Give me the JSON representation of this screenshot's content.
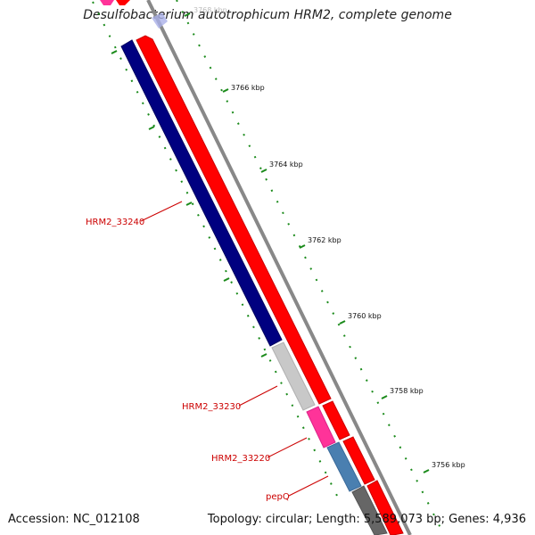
{
  "title": "Desulfobacterium autotrophicum HRM2, complete genome",
  "accession": "Accession: NC_012108",
  "summary": "Topology: circular; Length: 5,589,073 bp; Genes: 4,936",
  "ticks": [
    {
      "label": "3768 kbp",
      "faded": true
    },
    {
      "label": "3766 kbp"
    },
    {
      "label": "3764 kbp"
    },
    {
      "label": "3762 kbp"
    },
    {
      "label": "3760 kbp"
    },
    {
      "label": "3758 kbp"
    },
    {
      "label": "3756 kbp"
    }
  ],
  "gene_labels": [
    "HRM2_33240",
    "HRM2_33230",
    "HRM2_33220",
    "pepQ"
  ],
  "colors": {
    "forward_cds": "#ff0000",
    "reverse_cds": "#000080",
    "gray_feature": "#c8c8c8",
    "pink_feature": "#ff3399",
    "blue_feature": "#4a7fb0",
    "dark_feature": "#666666",
    "backbone": "#888888",
    "tick_green": "#1a8a1a",
    "label_red": "#cc0000"
  }
}
